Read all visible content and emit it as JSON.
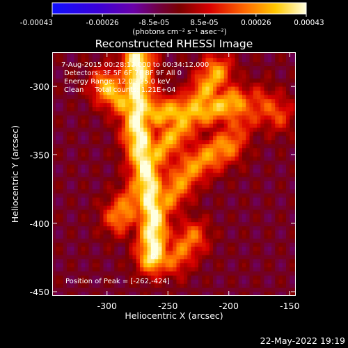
{
  "colorbar": {
    "ticks": [
      "-0.00043",
      "-0.00026",
      "-8.5e-05",
      "8.5e-05",
      "0.00026",
      "0.00043"
    ],
    "tick_values": [
      -0.00043,
      -0.00026,
      -8.5e-05,
      8.5e-05,
      0.00026,
      0.00043
    ],
    "range": [
      -0.00043,
      0.00043
    ],
    "unit": "(photons cm⁻² s⁻¹ asec⁻²)"
  },
  "chart_data": {
    "type": "heatmap",
    "title": "Reconstructed RHESSI Image",
    "xlabel": "Heliocentric X (arcsec)",
    "ylabel": "Heliocentric Y (arcsec)",
    "xlim": [
      -345,
      -145
    ],
    "ylim": [
      -453,
      -275
    ],
    "x_ticks": [
      "-300",
      "-250",
      "-200",
      "-150"
    ],
    "x_tick_values": [
      -300,
      -250,
      -200,
      -150
    ],
    "y_ticks": [
      "-300",
      "-350",
      "-400",
      "-450"
    ],
    "y_tick_values": [
      -300,
      -350,
      -400,
      -450
    ],
    "colormap": "hot-rainbow",
    "grid": false,
    "annotations": [
      "7-Aug-2015 00:28:12.000 to 00:34:12.000",
      "Detectors: 3F 5F 6F 7F 8F 9F All 0",
      "Energy Range: 12.0 - 25.0 keV",
      "Clean     Total counts: 1.21E+04"
    ],
    "peak_label": "Position of Peak = [-262,-424]",
    "peak": [
      -262,
      -424
    ],
    "emission_ridges": [
      {
        "points": [
          [
            -275,
            -280
          ],
          [
            -275,
            -330
          ],
          [
            -268,
            -360
          ],
          [
            -262,
            -395
          ],
          [
            -262,
            -424
          ]
        ],
        "intensity": 0.00043
      },
      {
        "points": [
          [
            -300,
            -300
          ],
          [
            -280,
            -315
          ],
          [
            -255,
            -320
          ],
          [
            -225,
            -318
          ],
          [
            -195,
            -312
          ]
        ],
        "intensity": 0.00032
      },
      {
        "points": [
          [
            -268,
            -360
          ],
          [
            -255,
            -345
          ],
          [
            -240,
            -330
          ],
          [
            -225,
            -312
          ],
          [
            -210,
            -290
          ]
        ],
        "intensity": 0.0003
      },
      {
        "points": [
          [
            -262,
            -395
          ],
          [
            -245,
            -375
          ],
          [
            -230,
            -358
          ],
          [
            -215,
            -350
          ],
          [
            -200,
            -342
          ]
        ],
        "intensity": 0.00027
      },
      {
        "points": [
          [
            -290,
            -395
          ],
          [
            -275,
            -380
          ],
          [
            -268,
            -360
          ]
        ],
        "intensity": 0.00026
      },
      {
        "points": [
          [
            -262,
            -424
          ],
          [
            -245,
            -425
          ],
          [
            -230,
            -410
          ]
        ],
        "intensity": 0.00023
      },
      {
        "points": [
          [
            -200,
            -342
          ],
          [
            -190,
            -325
          ],
          [
            -175,
            -312
          ],
          [
            -160,
            -320
          ]
        ],
        "intensity": 0.00018
      }
    ]
  },
  "footer": {
    "date": "22-May-2022 19:19"
  }
}
